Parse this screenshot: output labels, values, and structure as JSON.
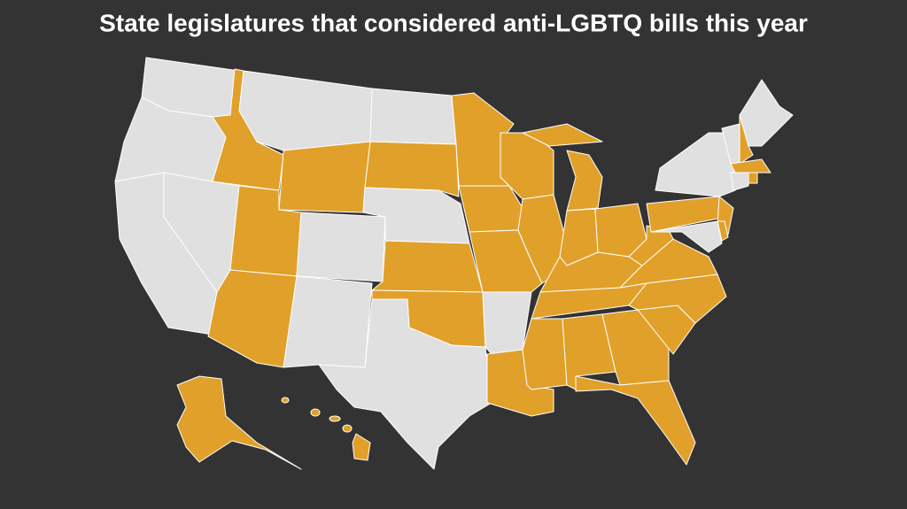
{
  "title": "State legislatures that considered anti-LGBTQ bills this year"
}
